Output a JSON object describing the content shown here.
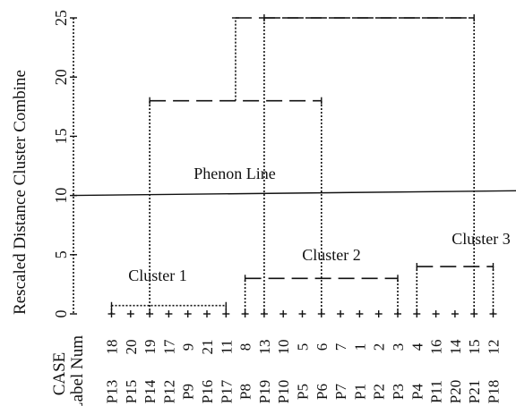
{
  "chart_data": {
    "type": "dendrogram",
    "ylabel": "Rescaled Distance Cluster Combine",
    "ylim": [
      0,
      25
    ],
    "yticks": [
      0,
      5,
      10,
      15,
      20,
      25
    ],
    "xaxis_header": [
      "CASE",
      "Label Num"
    ],
    "leaves": [
      {
        "num": "18",
        "label": "P13"
      },
      {
        "num": "20",
        "label": "P15"
      },
      {
        "num": "19",
        "label": "P14"
      },
      {
        "num": "17",
        "label": "P12"
      },
      {
        "num": "9",
        "label": "P9"
      },
      {
        "num": "21",
        "label": "P16"
      },
      {
        "num": "11",
        "label": "P17"
      },
      {
        "num": "8",
        "label": "P8"
      },
      {
        "num": "13",
        "label": "P19"
      },
      {
        "num": "10",
        "label": "P10"
      },
      {
        "num": "5",
        "label": "P5"
      },
      {
        "num": "6",
        "label": "P6"
      },
      {
        "num": "7",
        "label": "P7"
      },
      {
        "num": "1",
        "label": "P1"
      },
      {
        "num": "2",
        "label": "P2"
      },
      {
        "num": "3",
        "label": "P3"
      },
      {
        "num": "4",
        "label": "P4"
      },
      {
        "num": "16",
        "label": "P11"
      },
      {
        "num": "14",
        "label": "P20"
      },
      {
        "num": "15",
        "label": "P21"
      },
      {
        "num": "12",
        "label": "P18"
      }
    ],
    "merges": [
      {
        "from_leaf": 0,
        "to_leaf": 6,
        "height": 0.7
      },
      {
        "from_leaf": 7,
        "to_leaf": 15,
        "height": 3
      },
      {
        "from_leaf": 16,
        "to_leaf": 20,
        "height": 4
      },
      {
        "from_leaf": 2,
        "to_leaf": 11,
        "height": 18
      },
      {
        "from_leaf": 8,
        "to_leaf": 19,
        "height": 25
      }
    ],
    "phenon_line": {
      "label": "Phenon Line",
      "y_start": 10,
      "y_end": 10.4
    },
    "clusters": [
      "Cluster 1",
      "Cluster 2",
      "Cluster 3"
    ]
  }
}
